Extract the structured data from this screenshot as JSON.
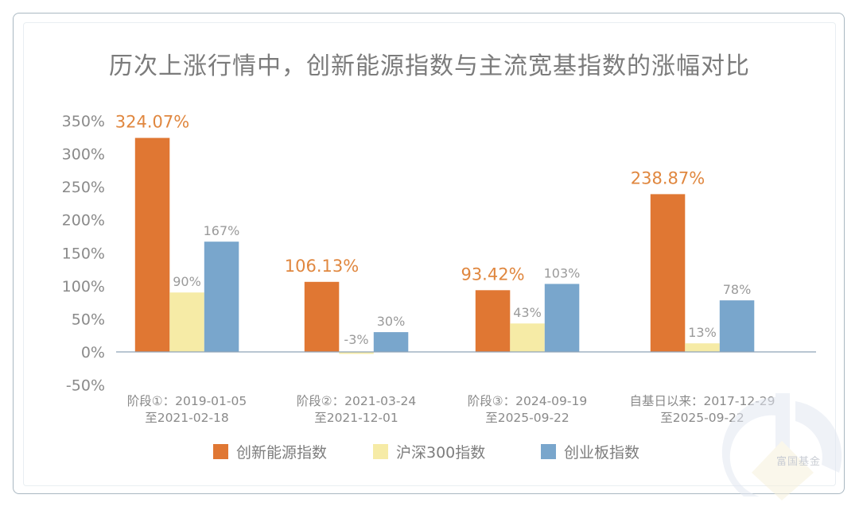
{
  "title": "历次上涨行情中，创新能源指数与主流宽基指数的涨幅对比",
  "watermark_text": "富国基金",
  "colors": {
    "innovation_energy": "#e07733",
    "hs300": "#f6eba6",
    "chinext": "#79a6cc",
    "axis": "#8fa3b8",
    "tick_text": "#8a8a8a",
    "highlight_label": "#e0873f",
    "plain_label": "#9a9a9a"
  },
  "chart_data": {
    "type": "bar",
    "title": "历次上涨行情中，创新能源指数与主流宽基指数的涨幅对比",
    "xlabel": "",
    "ylabel": "",
    "ylim": [
      -50,
      350
    ],
    "yticks": [
      350,
      300,
      250,
      200,
      150,
      100,
      50,
      0,
      -50
    ],
    "ytick_labels": [
      "350%",
      "300%",
      "250%",
      "200%",
      "150%",
      "100%",
      "50%",
      "0%",
      "-50%"
    ],
    "grid": false,
    "legend_position": "bottom",
    "categories": [
      [
        "阶段①：2019-01-05",
        "至2021-02-18"
      ],
      [
        "阶段②：2021-03-24",
        "至2021-12-01"
      ],
      [
        "阶段③：2024-09-19",
        "至2025-09-22"
      ],
      [
        "自基日以来：2017-12-29",
        "至2025-09-22"
      ]
    ],
    "series": [
      {
        "name": "创新能源指数",
        "color_key": "innovation_energy",
        "values": [
          324.07,
          106.13,
          93.42,
          238.87
        ],
        "labels": [
          "324.07%",
          "106.13%",
          "93.42%",
          "238.87%"
        ],
        "label_style": "highlight"
      },
      {
        "name": "沪深300指数",
        "color_key": "hs300",
        "values": [
          90,
          -3,
          43,
          13
        ],
        "labels": [
          "90%",
          "-3%",
          "43%",
          "13%"
        ],
        "label_style": "plain"
      },
      {
        "name": "创业板指数",
        "color_key": "chinext",
        "values": [
          167,
          30,
          103,
          78
        ],
        "labels": [
          "167%",
          "30%",
          "103%",
          "78%"
        ],
        "label_style": "plain"
      }
    ]
  }
}
